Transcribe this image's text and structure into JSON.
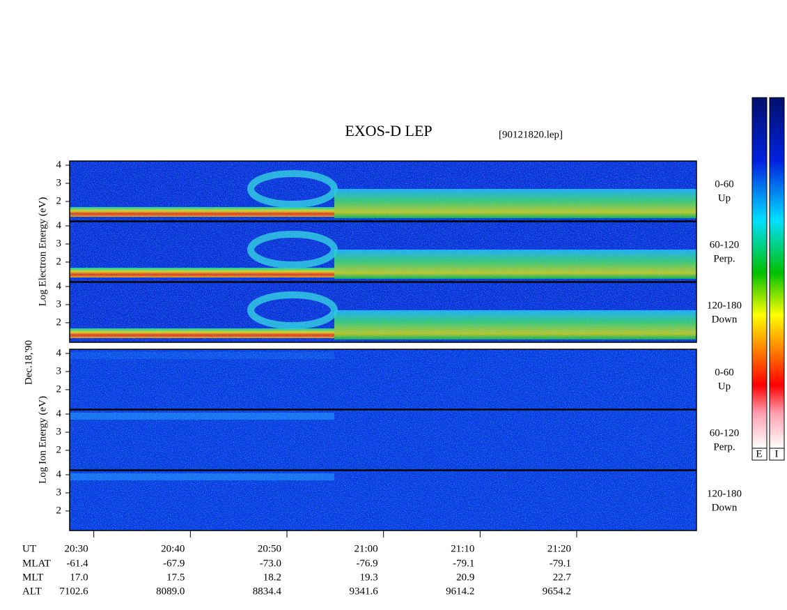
{
  "chart_data": {
    "type": "spectrogram",
    "title": "EXOS-D LEP",
    "subtitle": "[90121820.lep]",
    "date": "Dec.18,'90",
    "xlim": [
      1227.5,
      1292.4
    ],
    "xticks": [
      {
        "value": 1230,
        "label": "20:30"
      },
      {
        "value": 1240,
        "label": "20:40"
      },
      {
        "value": 1250,
        "label": "20:50"
      },
      {
        "value": 1260,
        "label": "21:00"
      },
      {
        "value": 1270,
        "label": "21:10"
      },
      {
        "value": 1280,
        "label": "21:20"
      }
    ],
    "ylim": [
      0.92,
      4.23
    ],
    "yticks": [
      2,
      3,
      4
    ],
    "groups": [
      {
        "ylabel": "Log Electron Energy (eV)",
        "panels": [
          {
            "label": "0-60",
            "sublabel": "Up"
          },
          {
            "label": "60-120",
            "sublabel": "Perp."
          },
          {
            "label": "120-180",
            "sublabel": "Down"
          }
        ]
      },
      {
        "ylabel": "Log Ion Energy (eV)",
        "panels": [
          {
            "label": "0-60",
            "sublabel": "Up"
          },
          {
            "label": "60-120",
            "sublabel": "Perp."
          },
          {
            "label": "120-180",
            "sublabel": "Down"
          }
        ]
      }
    ],
    "ephemeris": {
      "header": "UT",
      "rows": [
        {
          "name": "MLAT",
          "values": [
            "-61.4",
            "-67.9",
            "-73.0",
            "-76.9",
            "-79.1",
            "-79.1"
          ]
        },
        {
          "name": "MLT",
          "values": [
            "17.0",
            "17.5",
            "18.2",
            "19.3",
            "20.9",
            "22.7"
          ]
        },
        {
          "name": "ALT",
          "values": [
            "7102.6",
            "8089.0",
            "8834.4",
            "9341.6",
            "9614.2",
            "9654.2"
          ]
        }
      ]
    },
    "colorbar": {
      "labels": [
        "E",
        "I"
      ]
    }
  }
}
